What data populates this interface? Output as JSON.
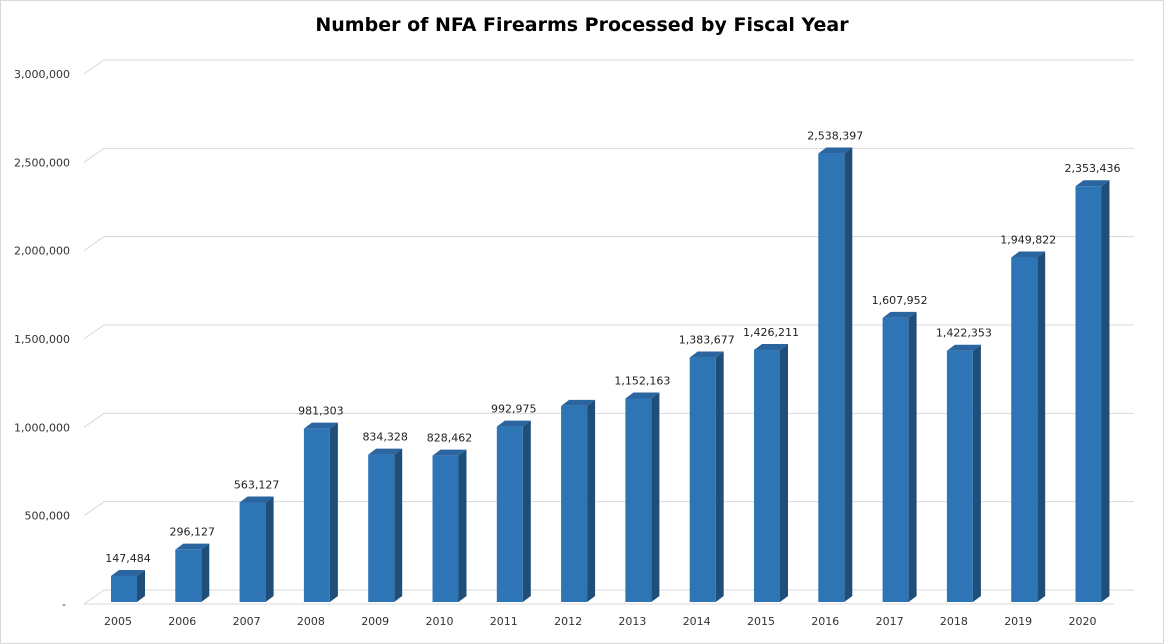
{
  "chart_data": {
    "type": "bar",
    "title": "Number of NFA Firearms Processed by Fiscal Year",
    "xlabel": "",
    "ylabel": "",
    "categories": [
      "2005",
      "2006",
      "2007",
      "2008",
      "2009",
      "2010",
      "2011",
      "2012",
      "2013",
      "2014",
      "2015",
      "2016",
      "2017",
      "2018",
      "2019",
      "2020"
    ],
    "values": [
      147484,
      296127,
      563127,
      981303,
      834328,
      828462,
      992975,
      1110000,
      1152163,
      1383677,
      1426211,
      2538397,
      1607952,
      1422353,
      1949822,
      2353436
    ],
    "data_labels": [
      "147,484",
      "296,127",
      "563,127",
      "981,303",
      "834,328",
      "828,462",
      "992,975",
      "",
      "1,152,163",
      "1,383,677",
      "1,426,211",
      "2,538,397",
      "1,607,952",
      "1,422,353",
      "1,949,822",
      "2,353,436"
    ],
    "ylim": [
      0,
      3000000
    ],
    "y_ticks": [
      0,
      500000,
      1000000,
      1500000,
      2000000,
      2500000,
      3000000
    ],
    "y_tick_labels": [
      "-",
      "500,000",
      "1,000,000",
      "1,500,000",
      "2,000,000",
      "2,500,000",
      "3,000,000"
    ],
    "grid": true,
    "legend": "none",
    "bar_style": "3d",
    "colors": {
      "bar_front": "#2e75b6",
      "bar_side": "#1f4e79",
      "bar_top": "#2a65a0",
      "grid": "#d9d9d9"
    }
  }
}
